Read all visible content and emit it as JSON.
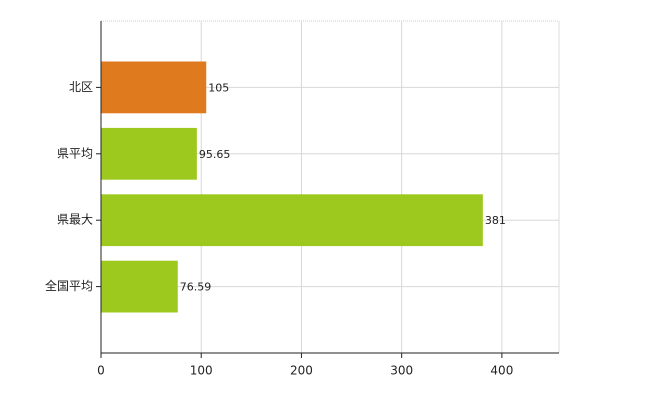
{
  "chart_data": {
    "type": "bar",
    "orientation": "horizontal",
    "categories": [
      "北区",
      "県平均",
      "県最大",
      "全国平均"
    ],
    "values": [
      105,
      95.65,
      381,
      76.59
    ],
    "colors": [
      "#e07a1f",
      "#9dc91f",
      "#9dc91f",
      "#9dc91f"
    ],
    "xlim": [
      0,
      457
    ],
    "xticks": [
      0,
      100,
      200,
      300,
      400
    ],
    "grid": true
  }
}
